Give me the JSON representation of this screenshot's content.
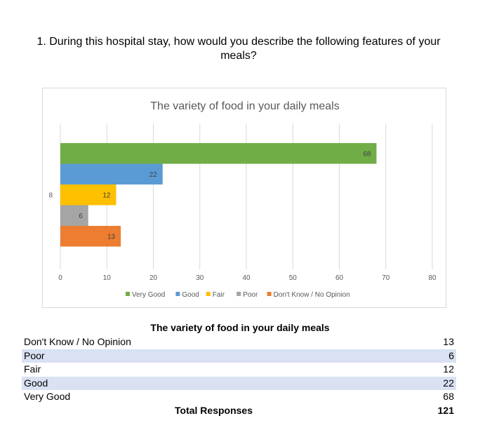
{
  "question": {
    "line1": "1. During this hospital stay, how would you describe the following features of your",
    "line2": "meals?"
  },
  "chart_data": {
    "type": "bar",
    "orientation": "horizontal",
    "title": "The variety of food in your daily meals",
    "categories": [
      "8"
    ],
    "series": [
      {
        "name": "Very Good",
        "values": [
          68
        ],
        "color": "#70ad47"
      },
      {
        "name": "Good",
        "values": [
          22
        ],
        "color": "#5b9bd5"
      },
      {
        "name": "Fair",
        "values": [
          12
        ],
        "color": "#ffc000"
      },
      {
        "name": "Poor",
        "values": [
          6
        ],
        "color": "#a5a5a5"
      },
      {
        "name": "Don't Know / No Opinion",
        "values": [
          13
        ],
        "color": "#ed7d31"
      }
    ],
    "xlim": [
      0,
      80
    ],
    "xticks": [
      0,
      10,
      20,
      30,
      40,
      50,
      60,
      70,
      80
    ],
    "grid": true,
    "legend": "bottom"
  },
  "table": {
    "title": "The variety of food in your daily meals",
    "rows": [
      {
        "label": "Don't Know / No Opinion",
        "value": "13"
      },
      {
        "label": "Poor",
        "value": "6"
      },
      {
        "label": "Fair",
        "value": "12"
      },
      {
        "label": "Good",
        "value": "22"
      },
      {
        "label": "Very Good",
        "value": "68"
      }
    ],
    "total_label": "Total Responses",
    "total_value": "121"
  }
}
